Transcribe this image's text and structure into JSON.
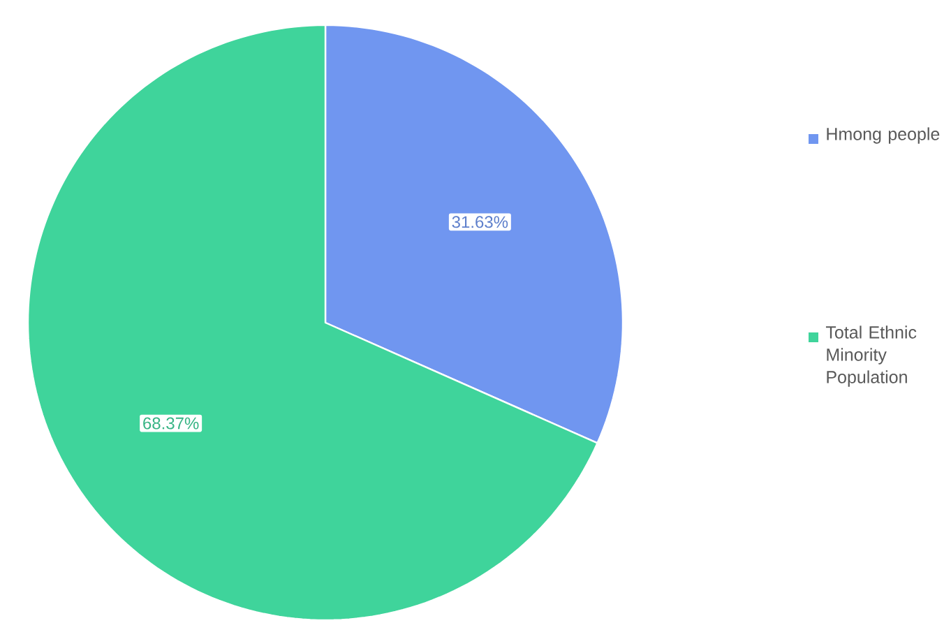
{
  "chart_data": {
    "type": "pie",
    "categories": [
      "Hmong people",
      "Total Ethnic Minority Population"
    ],
    "values": [
      31.63,
      68.37
    ],
    "colors": [
      "#7096f0",
      "#3fd49b"
    ],
    "value_labels": [
      "31.63%",
      "68.37%"
    ],
    "legend": "right"
  }
}
